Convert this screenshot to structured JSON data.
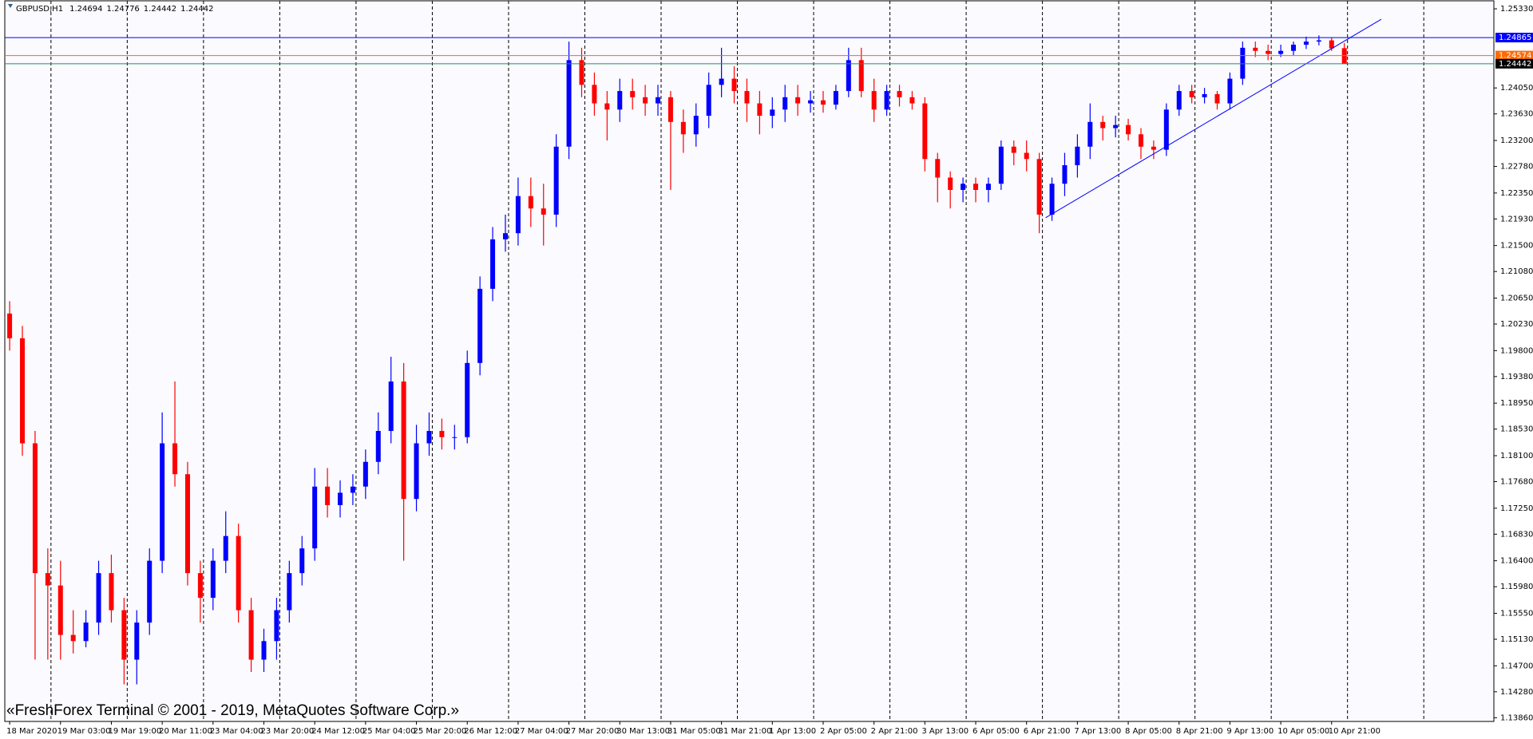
{
  "chart_data": {
    "type": "candlestick",
    "title": "GBPUSD,H1",
    "annotation": "«FreshForex Terminal © 2001 - 2019, MetaQuotes Software Corp.»",
    "up_color": "#0000ff",
    "down_color": "#ff0000",
    "categories": [
      "18 Mar 2020",
      null,
      null,
      null,
      "19 Mar 03:00",
      null,
      null,
      null,
      "19 Mar 19:00",
      null,
      null,
      null,
      "20 Mar 11:00",
      null,
      null,
      null,
      "23 Mar 04:00",
      null,
      null,
      null,
      "23 Mar 20:00",
      null,
      null,
      null,
      "24 Mar 12:00",
      null,
      null,
      null,
      "25 Mar 04:00",
      null,
      null,
      null,
      "25 Mar 20:00",
      null,
      null,
      null,
      "26 Mar 12:00",
      null,
      null,
      null,
      "27 Mar 04:00",
      null,
      null,
      null,
      "27 Mar 20:00",
      null,
      null,
      null,
      "30 Mar 13:00",
      null,
      null,
      null,
      "31 Mar 05:00",
      null,
      null,
      null,
      "31 Mar 21:00",
      null,
      null,
      null,
      "1 Apr 13:00",
      null,
      null,
      null,
      "2 Apr 05:00",
      null,
      null,
      null,
      "2 Apr 21:00",
      null,
      null,
      null,
      "3 Apr 13:00",
      null,
      null,
      null,
      "6 Apr 05:00",
      null,
      null,
      null,
      "6 Apr 21:00",
      null,
      null,
      null,
      "7 Apr 13:00",
      null,
      null,
      null,
      "8 Apr 05:00",
      null,
      null,
      null,
      "8 Apr 21:00",
      null,
      null,
      null,
      "9 Apr 13:00",
      null,
      null,
      null,
      "10 Apr 05:00",
      null,
      null,
      null,
      "10 Apr 21:00",
      null
    ],
    "open": [
      1.204,
      1.2,
      1.183,
      1.162,
      1.16,
      1.152,
      1.151,
      1.154,
      1.162,
      1.156,
      1.148,
      1.154,
      1.164,
      1.183,
      1.178,
      1.162,
      1.158,
      1.164,
      1.168,
      1.156,
      1.148,
      1.151,
      1.156,
      1.162,
      1.166,
      1.176,
      1.173,
      1.175,
      1.176,
      1.18,
      1.185,
      1.193,
      1.174,
      1.183,
      1.185,
      1.184,
      1.184,
      1.196,
      1.208,
      1.216,
      1.217,
      1.223,
      1.221,
      1.22,
      1.231,
      1.245,
      1.241,
      1.238,
      1.237,
      1.24,
      1.239,
      1.238,
      1.239,
      1.235,
      1.233,
      1.236,
      1.241,
      1.242,
      1.24,
      1.238,
      1.236,
      1.237,
      1.239,
      1.238,
      1.2385,
      1.2378,
      1.24,
      1.245,
      1.24,
      1.237,
      1.24,
      1.239,
      1.238,
      1.229,
      1.226,
      1.224,
      1.225,
      1.224,
      1.225,
      1.231,
      1.23,
      1.229,
      1.22,
      1.225,
      1.228,
      1.231,
      1.235,
      1.234,
      1.2345,
      1.233,
      1.231,
      1.2305,
      1.237,
      1.24,
      1.239,
      1.2395,
      1.238,
      1.242,
      1.247,
      1.2465,
      1.246,
      1.2465,
      1.2475,
      1.248,
      1.2482,
      1.24694
    ],
    "high": [
      1.206,
      1.202,
      1.185,
      1.166,
      1.164,
      1.156,
      1.156,
      1.164,
      1.165,
      1.158,
      1.156,
      1.166,
      1.188,
      1.193,
      1.18,
      1.164,
      1.166,
      1.172,
      1.17,
      1.158,
      1.153,
      1.158,
      1.164,
      1.168,
      1.179,
      1.179,
      1.177,
      1.178,
      1.182,
      1.188,
      1.197,
      1.196,
      1.186,
      1.188,
      1.187,
      1.186,
      1.198,
      1.21,
      1.218,
      1.22,
      1.226,
      1.226,
      1.225,
      1.233,
      1.248,
      1.247,
      1.243,
      1.24,
      1.242,
      1.242,
      1.241,
      1.241,
      1.24,
      1.237,
      1.238,
      1.243,
      1.247,
      1.244,
      1.242,
      1.24,
      1.239,
      1.241,
      1.241,
      1.24,
      1.24,
      1.241,
      1.247,
      1.247,
      1.242,
      1.241,
      1.241,
      1.24,
      1.239,
      1.23,
      1.227,
      1.226,
      1.226,
      1.226,
      1.232,
      1.232,
      1.232,
      1.23,
      1.226,
      1.23,
      1.233,
      1.238,
      1.236,
      1.236,
      1.2355,
      1.234,
      1.232,
      1.238,
      1.241,
      1.241,
      1.2405,
      1.24,
      1.243,
      1.248,
      1.248,
      1.2475,
      1.2475,
      1.248,
      1.2488,
      1.249,
      1.2486,
      1.24776
    ],
    "low": [
      1.198,
      1.181,
      1.148,
      1.148,
      1.148,
      1.149,
      1.15,
      1.152,
      1.154,
      1.144,
      1.144,
      1.152,
      1.162,
      1.176,
      1.16,
      1.154,
      1.156,
      1.162,
      1.154,
      1.146,
      1.146,
      1.148,
      1.154,
      1.16,
      1.164,
      1.171,
      1.171,
      1.173,
      1.174,
      1.178,
      1.183,
      1.164,
      1.172,
      1.181,
      1.182,
      1.182,
      1.183,
      1.194,
      1.206,
      1.214,
      1.215,
      1.218,
      1.215,
      1.218,
      1.229,
      1.239,
      1.236,
      1.232,
      1.235,
      1.237,
      1.236,
      1.236,
      1.224,
      1.23,
      1.231,
      1.234,
      1.239,
      1.238,
      1.235,
      1.233,
      1.234,
      1.235,
      1.236,
      1.2365,
      1.2365,
      1.237,
      1.239,
      1.239,
      1.235,
      1.236,
      1.2375,
      1.237,
      1.227,
      1.222,
      1.221,
      1.222,
      1.222,
      1.222,
      1.224,
      1.228,
      1.227,
      1.217,
      1.219,
      1.223,
      1.226,
      1.229,
      1.232,
      1.2325,
      1.232,
      1.229,
      1.229,
      1.2295,
      1.236,
      1.238,
      1.238,
      1.237,
      1.237,
      1.241,
      1.2455,
      1.245,
      1.2455,
      1.2458,
      1.2468,
      1.2474,
      1.2465,
      1.24442
    ],
    "close": [
      1.2,
      1.183,
      1.162,
      1.16,
      1.152,
      1.151,
      1.154,
      1.162,
      1.156,
      1.148,
      1.154,
      1.164,
      1.183,
      1.178,
      1.162,
      1.158,
      1.164,
      1.168,
      1.156,
      1.148,
      1.151,
      1.156,
      1.162,
      1.166,
      1.176,
      1.173,
      1.175,
      1.176,
      1.18,
      1.185,
      1.193,
      1.174,
      1.183,
      1.185,
      1.184,
      1.184,
      1.196,
      1.208,
      1.216,
      1.217,
      1.223,
      1.221,
      1.22,
      1.231,
      1.245,
      1.241,
      1.238,
      1.237,
      1.24,
      1.239,
      1.238,
      1.239,
      1.235,
      1.233,
      1.236,
      1.241,
      1.242,
      1.24,
      1.238,
      1.236,
      1.237,
      1.239,
      1.238,
      1.2385,
      1.2378,
      1.24,
      1.245,
      1.24,
      1.237,
      1.24,
      1.239,
      1.238,
      1.229,
      1.226,
      1.224,
      1.225,
      1.224,
      1.225,
      1.231,
      1.23,
      1.229,
      1.22,
      1.225,
      1.228,
      1.231,
      1.235,
      1.234,
      1.2345,
      1.233,
      1.231,
      1.2305,
      1.237,
      1.24,
      1.239,
      1.2395,
      1.238,
      1.242,
      1.247,
      1.2465,
      1.246,
      1.2465,
      1.2475,
      1.248,
      1.2482,
      1.2469,
      1.24442
    ],
    "ylim": [
      1.138,
      1.2546
    ],
    "yticks": [
      {
        "value": 1.2533,
        "label": "1.25330"
      },
      {
        "value": 1.2405,
        "label": "1.24050"
      },
      {
        "value": 1.2363,
        "label": "1.23630"
      },
      {
        "value": 1.232,
        "label": "1.23200"
      },
      {
        "value": 1.2278,
        "label": "1.22780"
      },
      {
        "value": 1.2235,
        "label": "1.22350"
      },
      {
        "value": 1.2193,
        "label": "1.21930"
      },
      {
        "value": 1.215,
        "label": "1.21500"
      },
      {
        "value": 1.2108,
        "label": "1.21080"
      },
      {
        "value": 1.2065,
        "label": "1.20650"
      },
      {
        "value": 1.2023,
        "label": "1.20230"
      },
      {
        "value": 1.198,
        "label": "1.19800"
      },
      {
        "value": 1.1938,
        "label": "1.19380"
      },
      {
        "value": 1.1895,
        "label": "1.18950"
      },
      {
        "value": 1.1853,
        "label": "1.18530"
      },
      {
        "value": 1.181,
        "label": "1.18100"
      },
      {
        "value": 1.1768,
        "label": "1.17680"
      },
      {
        "value": 1.1725,
        "label": "1.17250"
      },
      {
        "value": 1.1683,
        "label": "1.16830"
      },
      {
        "value": 1.164,
        "label": "1.16400"
      },
      {
        "value": 1.1598,
        "label": "1.15980"
      },
      {
        "value": 1.1555,
        "label": "1.15550"
      },
      {
        "value": 1.1513,
        "label": "1.15130"
      },
      {
        "value": 1.147,
        "label": "1.14700"
      },
      {
        "value": 1.1428,
        "label": "1.14280"
      },
      {
        "value": 1.1386,
        "label": "1.13860"
      }
    ],
    "levels": [
      {
        "value": 1.24865,
        "color": "#0000ff",
        "label_color": "#0000ff"
      },
      {
        "value": 1.24574,
        "color": "#ff6a00",
        "label_color": "#ff6a00"
      },
      {
        "value": 1.24442,
        "color": "#2e8b57",
        "label_color": "#000000"
      }
    ],
    "trendline": {
      "x": [
        81.5,
        107.9
      ],
      "y": [
        1.2195,
        1.2516
      ],
      "color": "#0000ff"
    }
  }
}
